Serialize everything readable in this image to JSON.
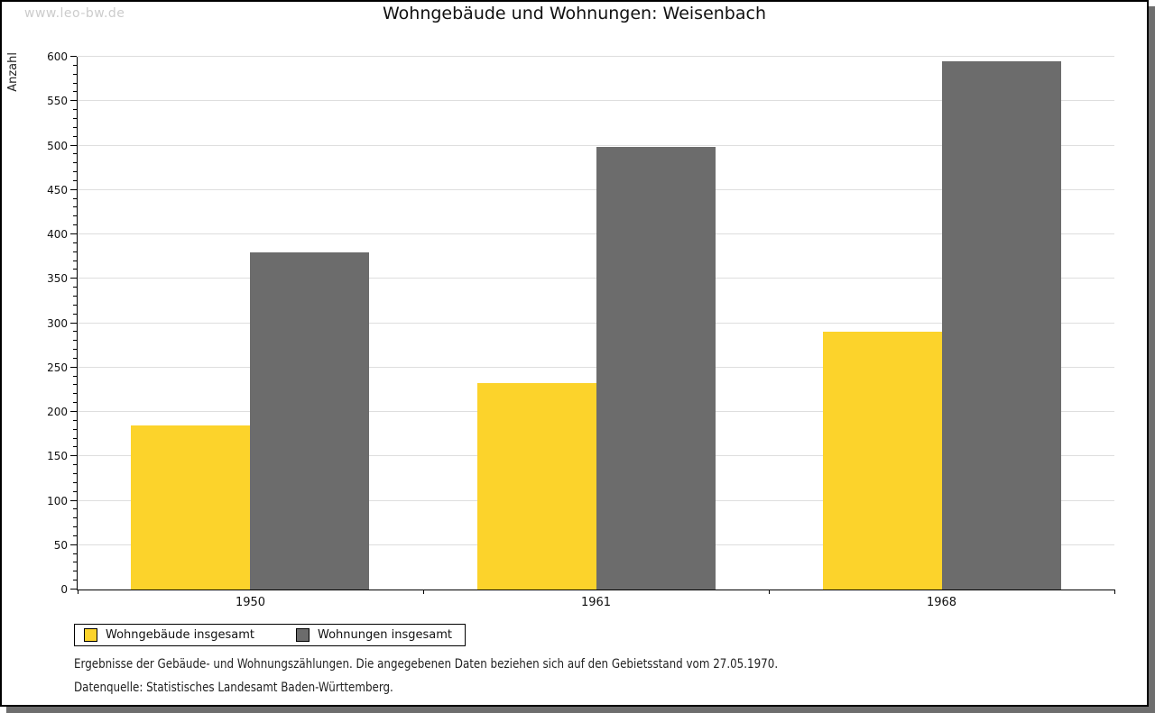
{
  "watermark": "www.leo-bw.de",
  "title": "Wohngebäude und Wohnungen: Weisenbach",
  "chart_data": {
    "type": "bar",
    "title": "Wohngebäude und Wohnungen: Weisenbach",
    "categories": [
      "1950",
      "1961",
      "1968"
    ],
    "series": [
      {
        "key": "wohngebaeude",
        "name": "Wohngebäude insgesamt",
        "color": "#fcd32b",
        "values": [
          185,
          232,
          290
        ]
      },
      {
        "key": "wohnungen",
        "name": "Wohnungen insgesamt",
        "color": "#6c6c6c",
        "values": [
          380,
          499,
          595
        ]
      }
    ],
    "xlabel": "",
    "ylabel": "Anzahl",
    "ylim": [
      0,
      600
    ],
    "ytick_step": 50,
    "yminor_step": 10,
    "grid": true,
    "legend_position": "bottom-left"
  },
  "notes": [
    "Ergebnisse der Gebäude- und Wohnungszählungen. Die angegebenen Daten beziehen sich auf den Gebietsstand vom 27.05.1970.",
    "Datenquelle: Statistisches Landesamt Baden-Württemberg."
  ]
}
